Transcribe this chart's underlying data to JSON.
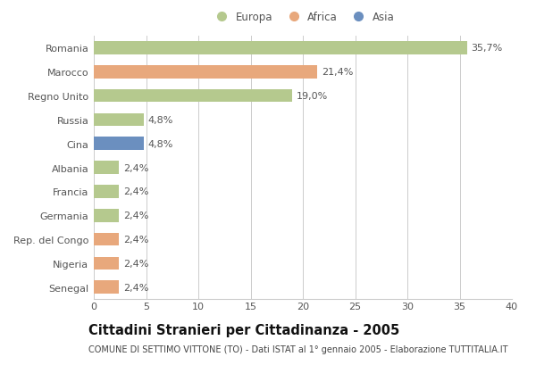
{
  "countries": [
    "Romania",
    "Marocco",
    "Regno Unito",
    "Russia",
    "Cina",
    "Albania",
    "Francia",
    "Germania",
    "Rep. del Congo",
    "Nigeria",
    "Senegal"
  ],
  "values": [
    35.7,
    21.4,
    19.0,
    4.8,
    4.8,
    2.4,
    2.4,
    2.4,
    2.4,
    2.4,
    2.4
  ],
  "labels": [
    "35,7%",
    "21,4%",
    "19,0%",
    "4,8%",
    "4,8%",
    "2,4%",
    "2,4%",
    "2,4%",
    "2,4%",
    "2,4%",
    "2,4%"
  ],
  "continents": [
    "Europa",
    "Africa",
    "Europa",
    "Europa",
    "Asia",
    "Europa",
    "Europa",
    "Europa",
    "Africa",
    "Africa",
    "Africa"
  ],
  "colors": {
    "Europa": "#b5c98e",
    "Africa": "#e8a87c",
    "Asia": "#6b8fbf"
  },
  "xlim": [
    0,
    40
  ],
  "xticks": [
    0,
    5,
    10,
    15,
    20,
    25,
    30,
    35,
    40
  ],
  "title": "Cittadini Stranieri per Cittadinanza - 2005",
  "subtitle": "COMUNE DI SETTIMO VITTONE (TO) - Dati ISTAT al 1° gennaio 2005 - Elaborazione TUTTITALIA.IT",
  "bg_color": "#ffffff",
  "grid_color": "#cccccc",
  "bar_height": 0.55,
  "label_fontsize": 8.0,
  "ytick_fontsize": 8.0,
  "xtick_fontsize": 8.0,
  "title_fontsize": 10.5,
  "subtitle_fontsize": 7.0
}
